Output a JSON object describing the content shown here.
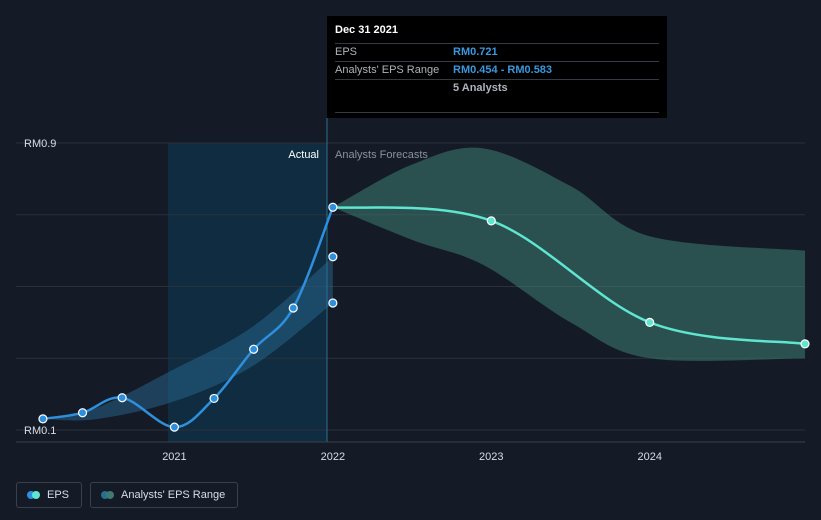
{
  "chart_data": {
    "type": "line",
    "title": "",
    "xlabel": "",
    "ylabel": "",
    "ylim": [
      0.1,
      0.9
    ],
    "y_ticks": [
      0.1,
      0.3,
      0.5,
      0.7,
      0.9
    ],
    "y_tick_labels": {
      "0.1": "RM0.1",
      "0.9": "RM0.9"
    },
    "x_domain": [
      2020.0,
      2024.98
    ],
    "x_ticks": [
      2021,
      2022,
      2023,
      2024
    ],
    "x_tick_labels": [
      "2021",
      "2022",
      "2023",
      "2024"
    ],
    "section_labels": {
      "actual": "Actual",
      "forecast": "Analysts Forecasts"
    },
    "divider_x": 2022.0,
    "actual_highlight_start": 2021.0,
    "series": [
      {
        "name": "EPS (actual)",
        "color": "#2e90dd",
        "x": [
          2020.17,
          2020.42,
          2020.67,
          2021.0,
          2021.25,
          2021.5,
          2021.75,
          2022.0
        ],
        "values": [
          0.131,
          0.148,
          0.19,
          0.108,
          0.188,
          0.325,
          0.44,
          0.721
        ]
      },
      {
        "name": "EPS (forecast)",
        "color": "#5ee6d0",
        "x": [
          2022.0,
          2023.0,
          2024.0,
          2024.98
        ],
        "values": [
          0.721,
          0.683,
          0.4,
          0.34
        ]
      }
    ],
    "extra_points": [
      {
        "x": 2022.0,
        "value": 0.583
      },
      {
        "x": 2022.0,
        "value": 0.454
      }
    ],
    "actual_range": {
      "x": [
        2020.17,
        2020.5,
        2021.0,
        2021.5,
        2022.0
      ],
      "low": [
        0.131,
        0.13,
        0.18,
        0.28,
        0.454
      ],
      "high": [
        0.131,
        0.16,
        0.27,
        0.39,
        0.583
      ]
    },
    "forecast_range": {
      "x": [
        2022.0,
        2022.5,
        2022.95,
        2023.5,
        2024.0,
        2024.98
      ],
      "low": [
        0.721,
        0.63,
        0.56,
        0.4,
        0.3,
        0.3
      ],
      "high": [
        0.721,
        0.84,
        0.885,
        0.78,
        0.64,
        0.6
      ]
    }
  },
  "tooltip": {
    "date": "Dec 31 2021",
    "rows": [
      {
        "label": "EPS",
        "value": "RM0.721"
      },
      {
        "label": "Analysts' EPS Range",
        "value": "RM0.454 - RM0.583"
      },
      {
        "label": "",
        "value": "5 Analysts"
      }
    ]
  },
  "legend": {
    "eps_label": "EPS",
    "range_label": "Analysts' EPS Range",
    "eps_colors": [
      "#2e90dd",
      "#5ee6d0"
    ],
    "range_colors": [
      "#2a6f8f",
      "#3d7a72"
    ]
  }
}
